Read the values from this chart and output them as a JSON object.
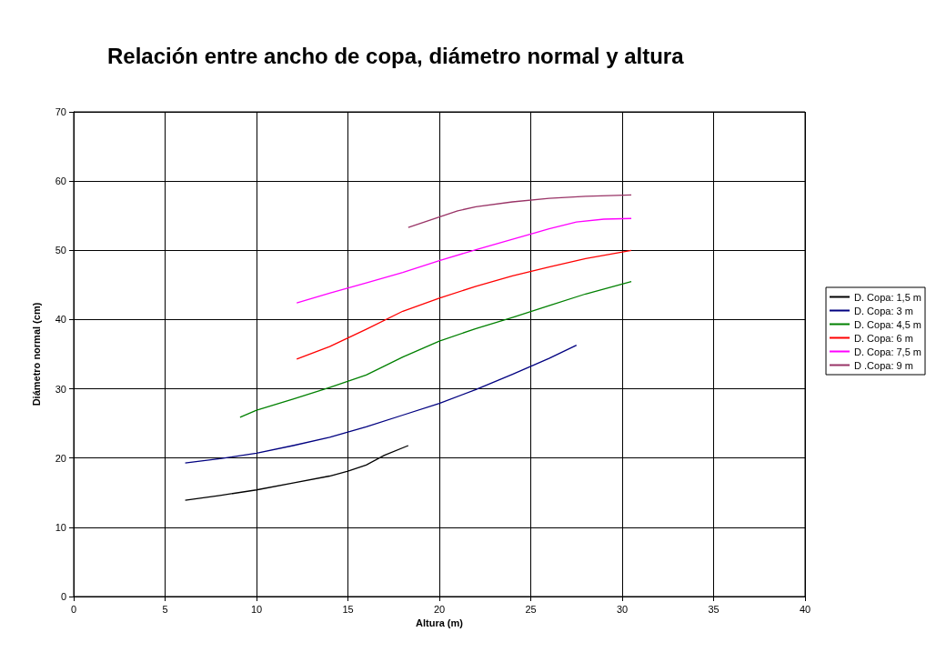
{
  "chart_data": {
    "type": "line",
    "title": "Relación entre ancho de copa, diámetro normal y altura",
    "xlabel": "Altura (m)",
    "ylabel": "Diámetro normal (cm)",
    "xlim": [
      0,
      40
    ],
    "xticks": [
      0,
      5,
      10,
      15,
      20,
      25,
      30,
      35,
      40
    ],
    "ylim": [
      0,
      70
    ],
    "yticks": [
      0,
      10,
      20,
      30,
      40,
      50,
      60,
      70
    ],
    "grid": true,
    "legend": "right",
    "marker": "none",
    "line_style": "solid",
    "series": [
      {
        "name": "D. Copa: 1,5 m",
        "color": "#000000",
        "x": [
          6.1,
          8,
          10,
          12,
          14,
          15,
          16,
          17,
          18.3
        ],
        "values": [
          13.9,
          14.6,
          15.4,
          16.4,
          17.4,
          18.1,
          19.0,
          20.4,
          21.8
        ]
      },
      {
        "name": "D. Copa: 3 m",
        "color": "#000080",
        "x": [
          6.1,
          8,
          10,
          12,
          14,
          16,
          18,
          20,
          22,
          24,
          26,
          27.5
        ],
        "values": [
          19.3,
          19.9,
          20.7,
          21.8,
          23.0,
          24.5,
          26.2,
          27.9,
          29.9,
          32.1,
          34.4,
          36.3
        ]
      },
      {
        "name": "D. Copa: 4,5 m",
        "color": "#008000",
        "x": [
          9.1,
          10,
          12,
          14,
          16,
          18,
          20,
          22,
          24,
          26,
          28,
          30.5
        ],
        "values": [
          25.9,
          26.9,
          28.5,
          30.2,
          32.0,
          34.6,
          36.9,
          38.7,
          40.3,
          42.0,
          43.7,
          45.5
        ]
      },
      {
        "name": "D. Copa: 6 m",
        "color": "#ff0000",
        "x": [
          12.2,
          14,
          16,
          18,
          20,
          22,
          24,
          26,
          28,
          30.5
        ],
        "values": [
          34.3,
          36.1,
          38.6,
          41.2,
          43.1,
          44.8,
          46.3,
          47.6,
          48.8,
          50.0
        ]
      },
      {
        "name": "D. Copa: 7,5 m",
        "color": "#ff00ff",
        "x": [
          12.2,
          14,
          16,
          18,
          20,
          22,
          24,
          26,
          27.5,
          29,
          30.5
        ],
        "values": [
          42.4,
          43.8,
          45.3,
          46.8,
          48.5,
          50.1,
          51.6,
          53.1,
          54.1,
          54.5,
          54.6
        ]
      },
      {
        "name": "D .Copa: 9 m",
        "color": "#993366",
        "x": [
          18.3,
          20,
          21,
          22,
          24,
          26,
          28,
          30.5
        ],
        "values": [
          53.3,
          54.8,
          55.7,
          56.3,
          57.0,
          57.5,
          57.8,
          58.0
        ]
      }
    ]
  }
}
